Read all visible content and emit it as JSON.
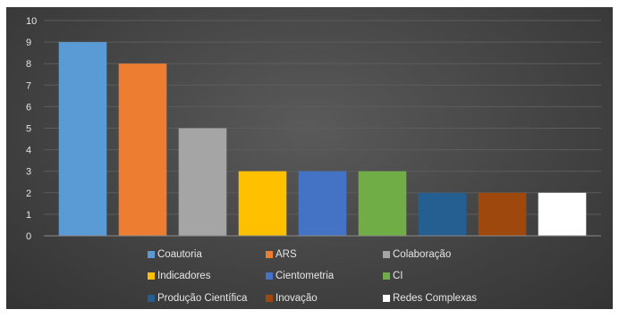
{
  "chart_data": {
    "type": "bar",
    "categories": [
      "Coautoria",
      "ARS",
      "Colaboração",
      "Indicadores",
      "Cientometria",
      "CI",
      "Produção Científica",
      "Inovação",
      "Redes Complexas"
    ],
    "values": [
      9,
      8,
      5,
      3,
      3,
      3,
      2,
      2,
      2
    ],
    "colors": [
      "#5b9bd5",
      "#ed7d31",
      "#a5a5a5",
      "#ffc000",
      "#4472c4",
      "#70ad47",
      "#255e91",
      "#9e480e",
      "#ffffff"
    ],
    "ylim": [
      0,
      10
    ],
    "yticks": [
      "0",
      "1",
      "2",
      "3",
      "4",
      "5",
      "6",
      "7",
      "8",
      "9",
      "10"
    ],
    "grid": true,
    "legend_position": "bottom",
    "background": "#444444"
  }
}
